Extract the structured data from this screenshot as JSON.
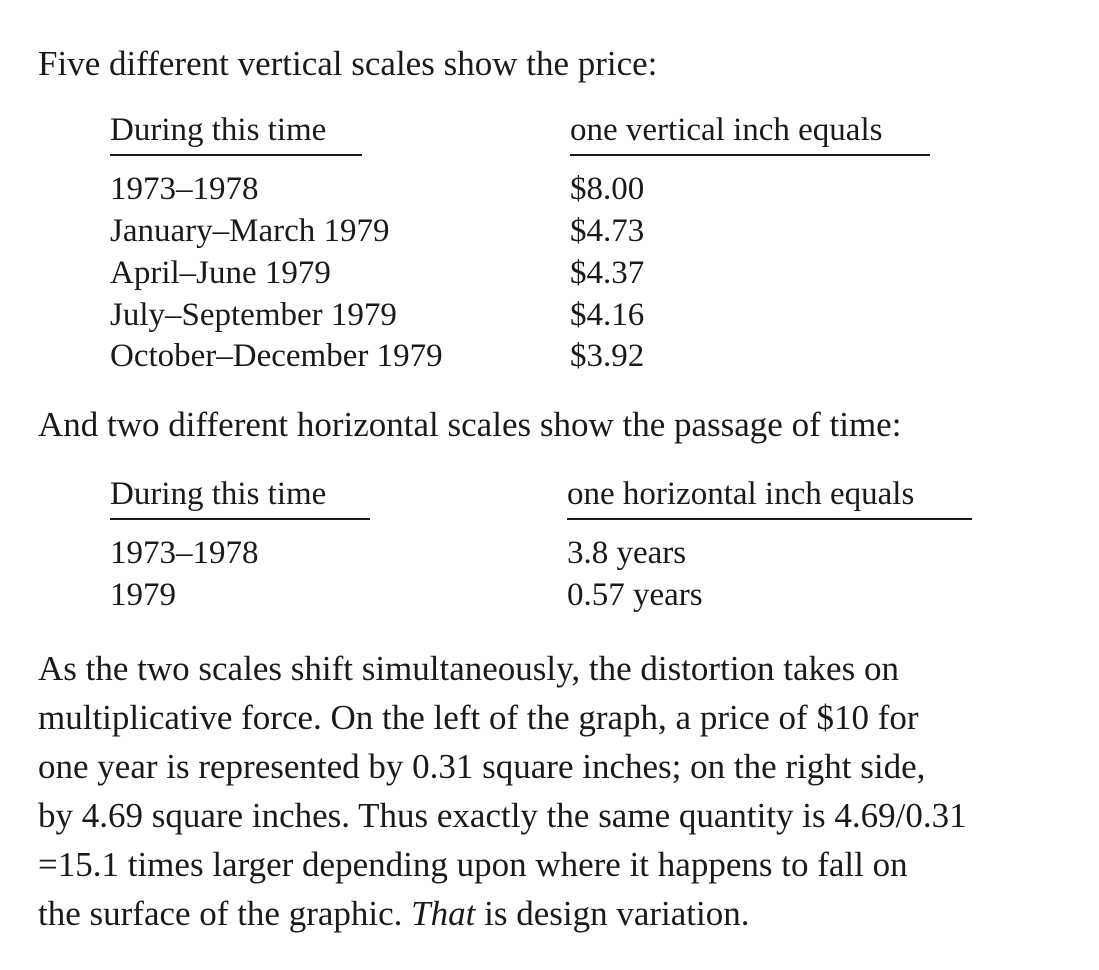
{
  "intro_vertical": "Five different vertical scales show the price:",
  "vertical_table": {
    "header_left": "During this time",
    "header_right": "one vertical inch equals",
    "rows": [
      {
        "period": "1973–1978",
        "value": "$8.00"
      },
      {
        "period": "January–March 1979",
        "value": "$4.73"
      },
      {
        "period": "April–June 1979",
        "value": "$4.37"
      },
      {
        "period": "July–September 1979",
        "value": "$4.16"
      },
      {
        "period": "October–December 1979",
        "value": "$3.92"
      }
    ]
  },
  "intro_horizontal": "And two different horizontal scales show the passage of time:",
  "horizontal_table": {
    "header_left": "During this time",
    "header_right": "one horizontal inch equals",
    "rows": [
      {
        "period": "1973–1978",
        "value": "3.8 years"
      },
      {
        "period": "1979",
        "value": "0.57 years"
      }
    ]
  },
  "body": {
    "lines": [
      "As the two scales shift simultaneously, the distortion takes on",
      "multiplicative force. On the left of the graph, a price of $10 for",
      "one year is represented by 0.31 square inches; on the right side,",
      "by 4.69 square inches. Thus exactly the same quantity is 4.69/0.31",
      "=15.1 times larger depending upon where it happens to fall on"
    ],
    "last_line_prefix": "the surface of the graphic. ",
    "last_line_emphasis": "That",
    "last_line_suffix": " is design variation."
  }
}
